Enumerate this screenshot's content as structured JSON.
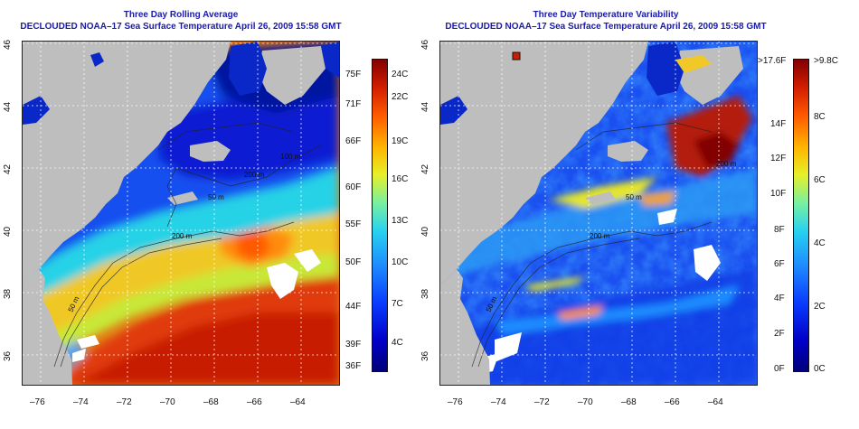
{
  "left_panel": {
    "title_line1": "Three Day Rolling Average",
    "title_line2": "DECLOUDED NOAA–17 Sea Surface Temperature April 26, 2009 15:58 GMT",
    "lat_ticks": [
      "46",
      "44",
      "42",
      "40",
      "38",
      "36"
    ],
    "lon_ticks": [
      "–76",
      "–74",
      "–72",
      "–70",
      "–68",
      "–66",
      "–64"
    ],
    "contour_labels": [
      "200 m",
      "200 m",
      "50 m",
      "50 m",
      "100 m"
    ],
    "colorbar_f": [
      "75F",
      "71F",
      "66F",
      "60F",
      "55F",
      "50F",
      "44F",
      "39F",
      "36F"
    ],
    "colorbar_c": [
      "24C",
      "22C",
      "19C",
      "16C",
      "13C",
      "10C",
      "7C",
      "4C"
    ]
  },
  "right_panel": {
    "title_line1": "Three Day Temperature Variability",
    "title_line2": "DECLOUDED NOAA–17 Sea Surface Temperature April 26, 2009 15:58 GMT",
    "lat_ticks": [
      "46",
      "44",
      "42",
      "40",
      "38",
      "36"
    ],
    "lon_ticks": [
      "–76",
      "–74",
      "–72",
      "–70",
      "–68",
      "–66",
      "–64"
    ],
    "contour_labels": [
      "200 m",
      "200 m",
      "50 m",
      "50 m"
    ],
    "colorbar_f": [
      ">17.6F",
      "14F",
      "12F",
      "10F",
      "8F",
      "6F",
      "4F",
      "2F",
      "0F"
    ],
    "colorbar_c": [
      ">9.8C",
      "8C",
      "6C",
      "4C",
      "2C",
      "0C"
    ]
  },
  "colors": {
    "land": "#bebebe",
    "title": "#1a1aa6",
    "sst_scale": [
      "#00007a",
      "#0000c8",
      "#0a3cff",
      "#1e8cff",
      "#28d2f0",
      "#78f0a0",
      "#e6f028",
      "#ffb400",
      "#ff5a00",
      "#d21e00",
      "#820000"
    ]
  }
}
